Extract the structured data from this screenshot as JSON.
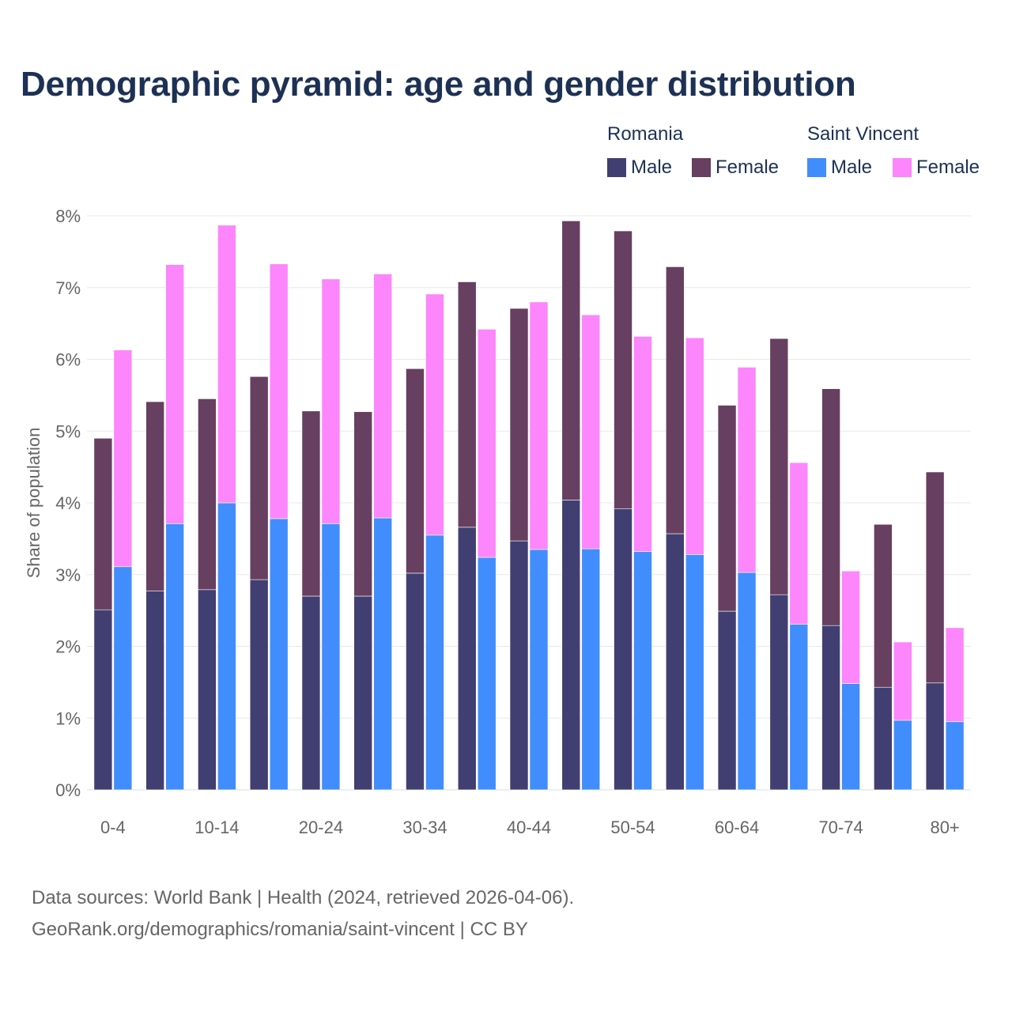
{
  "chart_data": {
    "type": "bar",
    "stacked": true,
    "title": "Demographic pyramid: age and gender distribution",
    "ylabel": "Share of population",
    "xlabel": "",
    "ylim": [
      0,
      8
    ],
    "yticks": [
      "0%",
      "1%",
      "2%",
      "3%",
      "4%",
      "5%",
      "6%",
      "7%",
      "8%"
    ],
    "categories": [
      "0-4",
      "5-9",
      "10-14",
      "15-19",
      "20-24",
      "25-29",
      "30-34",
      "35-39",
      "40-44",
      "45-49",
      "50-54",
      "55-59",
      "60-64",
      "65-69",
      "70-74",
      "75-79",
      "80+"
    ],
    "visible_xticks": [
      "0-4",
      "10-14",
      "20-24",
      "30-34",
      "40-44",
      "50-54",
      "60-64",
      "70-74",
      "80+"
    ],
    "countries": [
      {
        "name": "Romania",
        "series": [
          {
            "name": "Male",
            "color": "#413f71",
            "values": [
              2.51,
              2.77,
              2.79,
              2.93,
              2.7,
              2.7,
              3.02,
              3.66,
              3.47,
              4.04,
              3.92,
              3.57,
              2.49,
              2.72,
              2.29,
              1.43,
              1.49
            ]
          },
          {
            "name": "Female",
            "color": "#673f60",
            "values": [
              2.39,
              2.64,
              2.66,
              2.83,
              2.58,
              2.57,
              2.85,
              3.42,
              3.24,
              3.89,
              3.87,
              3.72,
              2.87,
              3.57,
              3.3,
              2.27,
              2.94
            ]
          }
        ]
      },
      {
        "name": "Saint Vincent",
        "series": [
          {
            "name": "Male",
            "color": "#418dfd",
            "values": [
              3.11,
              3.71,
              4.0,
              3.78,
              3.71,
              3.79,
              3.55,
              3.24,
              3.35,
              3.36,
              3.32,
              3.28,
              3.03,
              2.31,
              1.48,
              0.97,
              0.95
            ]
          },
          {
            "name": "Female",
            "color": "#fd86fc",
            "values": [
              3.02,
              3.61,
              3.87,
              3.55,
              3.41,
              3.4,
              3.36,
              3.18,
              3.45,
              3.26,
              3.0,
              3.02,
              2.86,
              2.25,
              1.57,
              1.09,
              1.31
            ]
          }
        ]
      }
    ],
    "grid": true
  },
  "footer": {
    "line1": "Data sources: World Bank | Health (2024, retrieved 2026-04-06).",
    "line2": "GeoRank.org/demographics/romania/saint-vincent | CC BY"
  }
}
